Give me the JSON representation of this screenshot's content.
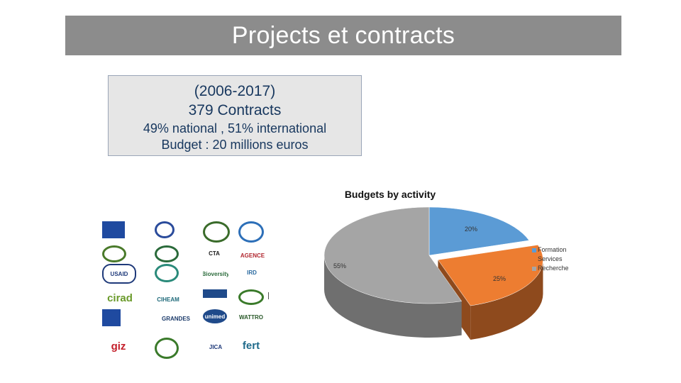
{
  "slide": {
    "title": "Projects et contracts"
  },
  "summary": {
    "line1": "(2006-2017)",
    "line2": "379 Contracts",
    "line3": "49% national , 51% international",
    "line4": "Budget : 20 millions euros"
  },
  "logos": [
    {
      "name": "eu",
      "label": "",
      "color": "#1f4aa0"
    },
    {
      "name": "star",
      "label": "",
      "color": "#2a4b9b"
    },
    {
      "name": "madea",
      "label": "",
      "color": "#3a6b2a"
    },
    {
      "name": "fao",
      "label": "",
      "color": "#2d6fb8"
    },
    {
      "name": "seal",
      "label": "",
      "color": "#4a7a2a"
    },
    {
      "name": "africa",
      "label": "",
      "color": "#2a6a3a"
    },
    {
      "name": "cta",
      "label": "CTA",
      "color": "#1b1b1b"
    },
    {
      "name": "agence",
      "label": "AGENCE",
      "color": "#b1272f"
    },
    {
      "name": "usaid",
      "label": "USAID",
      "color": "#1f3a7a"
    },
    {
      "name": "kmd",
      "label": "",
      "color": "#2a8a7a"
    },
    {
      "name": "bioversity",
      "label": "Bioversity",
      "color": "#2a6a3a"
    },
    {
      "name": "ird",
      "label": "IRD",
      "color": "#2a6aa0"
    },
    {
      "name": "cirad",
      "label": "cirad",
      "color": "#6a9a2a"
    },
    {
      "name": "ciheam",
      "label": "CIHEAM",
      "color": "#1f6a7a"
    },
    {
      "name": "bluebar",
      "label": "",
      "color": "#1f4a8a"
    },
    {
      "name": "ilaga",
      "label": "",
      "color": "#3a7a2a"
    },
    {
      "name": "pnud",
      "label": "",
      "color": "#1f4aa0"
    },
    {
      "name": "grandes-ecoles",
      "label": "GRANDES",
      "color": "#1b3a6a"
    },
    {
      "name": "unimed",
      "label": "unimed",
      "color": "#1f4a8a"
    },
    {
      "name": "wattro",
      "label": "WATTRO",
      "color": "#2a5a2a"
    },
    {
      "name": "giz",
      "label": "giz",
      "color": "#c41e2a"
    },
    {
      "name": "emblem",
      "label": "",
      "color": "#3a7a2a"
    },
    {
      "name": "jica",
      "label": "JICA",
      "color": "#1f3a7a"
    },
    {
      "name": "fert",
      "label": "fert",
      "color": "#1f6a8a"
    }
  ],
  "chart_data": {
    "type": "pie",
    "title": "Budgets by activity",
    "categories": [
      "Formation",
      "Services",
      "Recherche"
    ],
    "values": [
      20,
      25,
      55
    ],
    "data_labels": [
      "20%",
      "25%",
      "55%"
    ],
    "colors": [
      "#5b9bd5",
      "#ed7d31",
      "#a5a5a5"
    ],
    "side_colors": [
      "#2f5f8e",
      "#8e4a1d",
      "#6f6f6f"
    ],
    "exploded": [
      "Services"
    ],
    "legend_position": "right",
    "style": "3d"
  }
}
